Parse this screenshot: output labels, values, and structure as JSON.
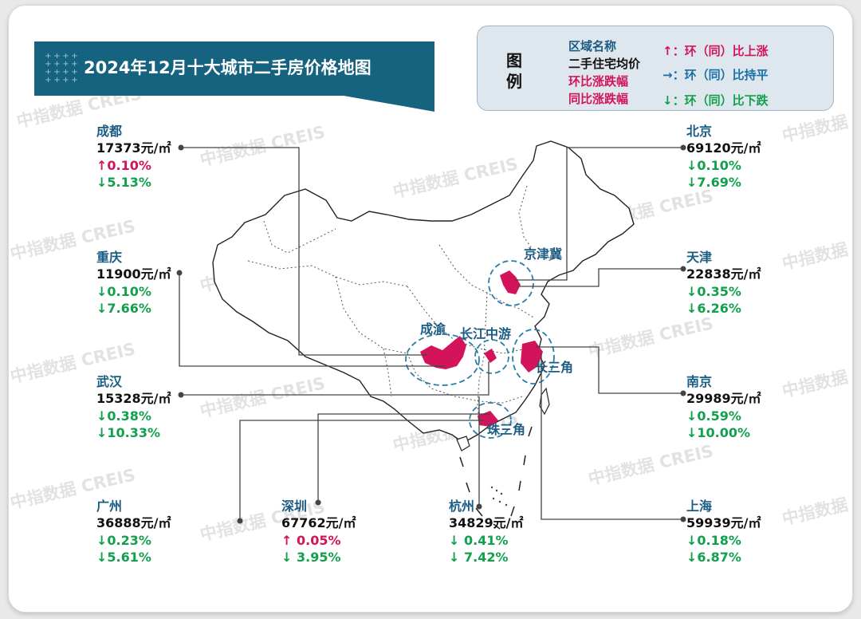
{
  "title": "2024年12月十大城市二手房价格地图",
  "watermark": "中指数据 CREIS",
  "legend": {
    "title": "图例",
    "lines": {
      "region_name": "区域名称",
      "avg_price": "二手住宅均价",
      "mom": "环比涨跌幅",
      "yoy": "同比涨跌幅",
      "up": "↑：环（同）比上涨",
      "flat": "→：环（同）比持平",
      "down": "↓：环（同）比下跌"
    }
  },
  "colors": {
    "title_bg": "#16637f",
    "city_name": "#1a5c82",
    "up": "#d4145a",
    "down": "#12a04c",
    "region_fill": "#d4145a",
    "circle": "#2a7fa8"
  },
  "regions": [
    "京津冀",
    "成渝",
    "长江中游",
    "长三角",
    "珠三角"
  ],
  "price_unit": "元/㎡",
  "cities": [
    {
      "id": "chengdu",
      "name": "成都",
      "price": "17373",
      "mom": "↑0.10%",
      "mom_dir": "up",
      "yoy": "↓5.13%",
      "yoy_dir": "down"
    },
    {
      "id": "chongqing",
      "name": "重庆",
      "price": "11900",
      "mom": "↓0.10%",
      "mom_dir": "down",
      "yoy": "↓7.66%",
      "yoy_dir": "down"
    },
    {
      "id": "wuhan",
      "name": "武汉",
      "price": "15328",
      "mom": "↓0.38%",
      "mom_dir": "down",
      "yoy": "↓10.33%",
      "yoy_dir": "down"
    },
    {
      "id": "guangzhou",
      "name": "广州",
      "price": "36888",
      "mom": "↓0.23%",
      "mom_dir": "down",
      "yoy": "↓5.61%",
      "yoy_dir": "down"
    },
    {
      "id": "shenzhen",
      "name": "深圳",
      "price": "67762",
      "mom": "↑ 0.05%",
      "mom_dir": "up",
      "yoy": "↓ 3.95%",
      "yoy_dir": "down"
    },
    {
      "id": "hangzhou",
      "name": "杭州",
      "price": "34829",
      "mom": "↓ 0.41%",
      "mom_dir": "down",
      "yoy": "↓ 7.42%",
      "yoy_dir": "down"
    },
    {
      "id": "beijing",
      "name": "北京",
      "price": "69120",
      "mom": "↓0.10%",
      "mom_dir": "down",
      "yoy": "↓7.69%",
      "yoy_dir": "down"
    },
    {
      "id": "tianjin",
      "name": "天津",
      "price": "22838",
      "mom": "↓0.35%",
      "mom_dir": "down",
      "yoy": "↓6.26%",
      "yoy_dir": "down"
    },
    {
      "id": "nanjing",
      "name": "南京",
      "price": "29989",
      "mom": "↓0.59%",
      "mom_dir": "down",
      "yoy": "↓10.00%",
      "yoy_dir": "down"
    },
    {
      "id": "shanghai",
      "name": "上海",
      "price": "59939",
      "mom": "↓0.18%",
      "mom_dir": "down",
      "yoy": "↓6.87%",
      "yoy_dir": "down"
    }
  ]
}
